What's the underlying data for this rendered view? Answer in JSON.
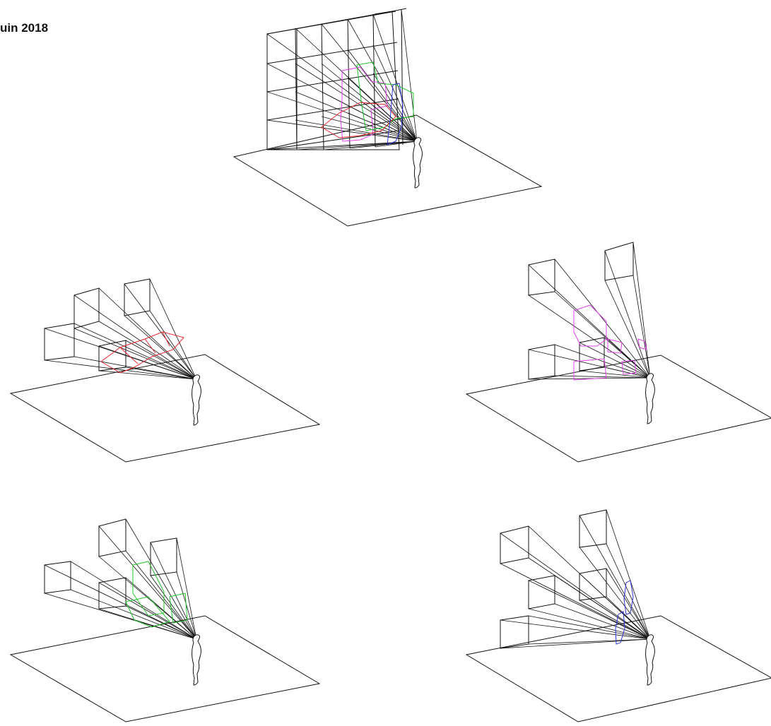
{
  "header": {
    "date": "uin 2018"
  },
  "colors": {
    "line": "#111111",
    "red": "#e8262e",
    "magenta": "#e040e8",
    "green": "#25c42a",
    "blue": "#2a32d8"
  },
  "panels": [
    {
      "name": "panel-full-grid",
      "highlight": [
        "red",
        "magenta",
        "green",
        "blue"
      ]
    },
    {
      "name": "panel-red",
      "highlight": [
        "red"
      ]
    },
    {
      "name": "panel-magenta",
      "highlight": [
        "magenta"
      ]
    },
    {
      "name": "panel-green",
      "highlight": [
        "green"
      ]
    },
    {
      "name": "panel-blue",
      "highlight": [
        "blue"
      ]
    }
  ]
}
